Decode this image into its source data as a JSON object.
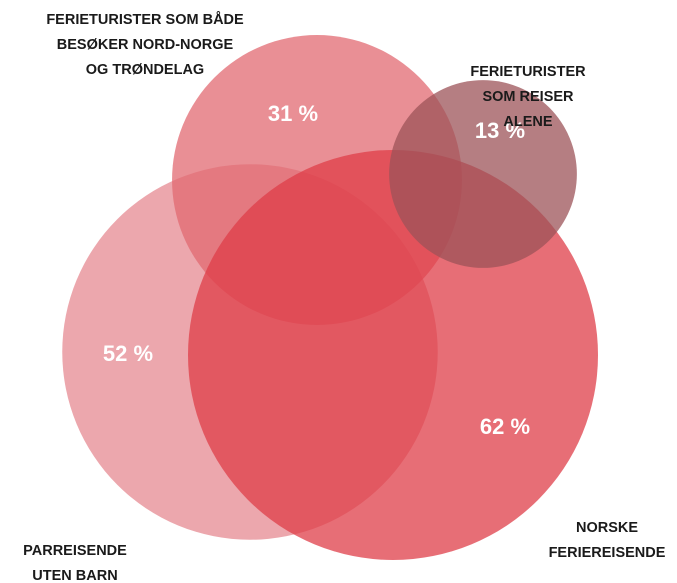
{
  "chart_data": {
    "type": "venn",
    "sets": [
      {
        "labels": [
          "PARREISENDE",
          "UTEN BARN"
        ],
        "value": 52,
        "value_label": "52 %",
        "color": "#e58a91"
      },
      {
        "labels": [
          "FERIETURISTER SOM BÅDE",
          "BESØKER NORD-NORGE",
          "OG TRØNDELAG"
        ],
        "value": 31,
        "value_label": "31 %",
        "color": "#e26a71"
      },
      {
        "labels": [
          "NORSKE",
          "FERIEREISENDE"
        ],
        "value": 62,
        "value_label": "62 %",
        "color": "#df3e48"
      },
      {
        "labels": [
          "FERIETURISTER",
          "SOM REISER",
          "ALENE"
        ],
        "value": 13,
        "value_label": "13 %",
        "color": "#9c5358"
      }
    ]
  }
}
